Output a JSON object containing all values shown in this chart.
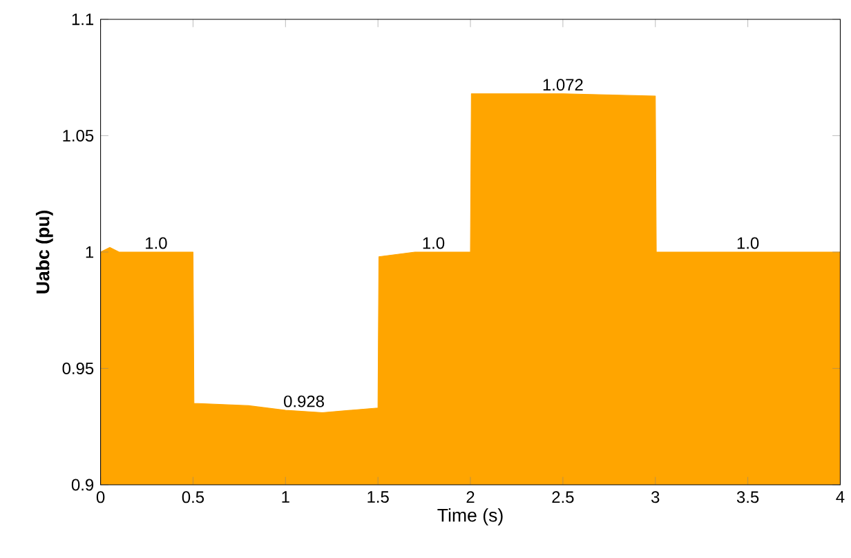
{
  "chart_data": {
    "type": "area",
    "xlabel": "Time (s)",
    "ylabel": "Uabc (pu)",
    "x": [
      0,
      0.05,
      0.1,
      0.5,
      0.505,
      0.8,
      1.0,
      1.2,
      1.5,
      1.505,
      1.7,
      2.0,
      2.005,
      2.5,
      3.0,
      3.005,
      3.5,
      4.0
    ],
    "series": [
      {
        "color": "#ffa500",
        "values": [
          1.0,
          1.002,
          1.0,
          1.0,
          0.935,
          0.934,
          0.932,
          0.931,
          0.933,
          0.998,
          1.0,
          1.0,
          1.068,
          1.068,
          1.067,
          1.0,
          1.0,
          1.0
        ]
      }
    ],
    "xlim": [
      0,
      4
    ],
    "ylim": [
      0.9,
      1.1
    ],
    "xticks": [
      0,
      0.5,
      1,
      1.5,
      2,
      2.5,
      3,
      3.5,
      4
    ],
    "yticks": [
      0.9,
      0.95,
      1,
      1.05,
      1.1
    ],
    "annotations": [
      {
        "text": "1.0",
        "x": 0.3,
        "y": 1.0
      },
      {
        "text": "0.928",
        "x": 1.1,
        "y": 0.932
      },
      {
        "text": "1.0",
        "x": 1.8,
        "y": 1.0
      },
      {
        "text": "1.072",
        "x": 2.5,
        "y": 1.068
      },
      {
        "text": "1.0",
        "x": 3.5,
        "y": 1.0
      }
    ],
    "marker": "none",
    "grid": false
  }
}
